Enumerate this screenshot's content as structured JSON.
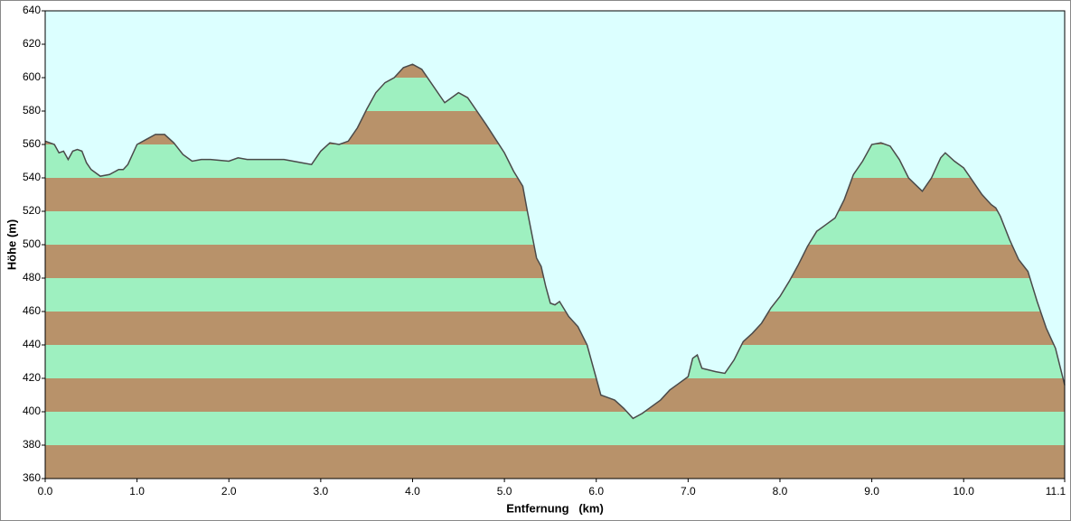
{
  "chart_data": {
    "type": "area",
    "x_label": "Entfernung   (km)",
    "y_label": "Höhe (m)",
    "x": [
      0.0,
      0.1,
      0.15,
      0.2,
      0.25,
      0.3,
      0.35,
      0.4,
      0.45,
      0.5,
      0.6,
      0.7,
      0.8,
      0.85,
      0.9,
      1.0,
      1.1,
      1.2,
      1.3,
      1.4,
      1.5,
      1.6,
      1.7,
      1.8,
      2.0,
      2.1,
      2.2,
      2.4,
      2.6,
      2.7,
      2.8,
      2.9,
      3.0,
      3.1,
      3.2,
      3.3,
      3.4,
      3.5,
      3.6,
      3.7,
      3.8,
      3.9,
      4.0,
      4.1,
      4.2,
      4.35,
      4.5,
      4.6,
      4.8,
      5.0,
      5.1,
      5.2,
      5.25,
      5.3,
      5.35,
      5.4,
      5.45,
      5.5,
      5.55,
      5.6,
      5.7,
      5.8,
      5.9,
      6.0,
      6.05,
      6.1,
      6.2,
      6.3,
      6.4,
      6.5,
      6.6,
      6.7,
      6.8,
      6.9,
      7.0,
      7.05,
      7.1,
      7.15,
      7.3,
      7.4,
      7.5,
      7.6,
      7.7,
      7.8,
      7.9,
      8.0,
      8.1,
      8.2,
      8.3,
      8.4,
      8.5,
      8.6,
      8.7,
      8.8,
      8.9,
      9.0,
      9.1,
      9.2,
      9.3,
      9.4,
      9.55,
      9.65,
      9.75,
      9.8,
      9.9,
      10.0,
      10.1,
      10.2,
      10.3,
      10.35,
      10.4,
      10.5,
      10.6,
      10.7,
      10.8,
      10.9,
      11.0,
      11.05,
      11.1
    ],
    "values": [
      562,
      560,
      555,
      556,
      551,
      556,
      557,
      556,
      549,
      545,
      541,
      542,
      545,
      545,
      548,
      560,
      563,
      566,
      566,
      561,
      554,
      550,
      551,
      551,
      550,
      552,
      551,
      551,
      551,
      550,
      549,
      548,
      556,
      561,
      560,
      562,
      570,
      581,
      591,
      597,
      600,
      606,
      608,
      605,
      597,
      585,
      591,
      588,
      572,
      555,
      544,
      535,
      520,
      506,
      492,
      487,
      475,
      465,
      464,
      466,
      457,
      451,
      440,
      420,
      410,
      409,
      407,
      402,
      396,
      399,
      403,
      407,
      413,
      417,
      421,
      432,
      434,
      426,
      424,
      423,
      431,
      442,
      447,
      453,
      462,
      469,
      478,
      488,
      499,
      508,
      512,
      516,
      527,
      542,
      550,
      560,
      561,
      559,
      551,
      540,
      532,
      540,
      552,
      555,
      550,
      546,
      538,
      530,
      524,
      522,
      517,
      503,
      491,
      484,
      466,
      450,
      438,
      427,
      416
    ],
    "xlim": [
      0,
      11.1
    ],
    "ylim": [
      360,
      640
    ],
    "xticks": [
      {
        "value": 0,
        "label": "0.0"
      },
      {
        "value": 1,
        "label": "1.0"
      },
      {
        "value": 2,
        "label": "2.0"
      },
      {
        "value": 3,
        "label": "3.0"
      },
      {
        "value": 4,
        "label": "4.0"
      },
      {
        "value": 5,
        "label": "5.0"
      },
      {
        "value": 6,
        "label": "6.0"
      },
      {
        "value": 7,
        "label": "7.0"
      },
      {
        "value": 8,
        "label": "8.0"
      },
      {
        "value": 9,
        "label": "9.0"
      },
      {
        "value": 10,
        "label": "10.0"
      },
      {
        "value": 11.1,
        "label": "11.1"
      }
    ],
    "yticks": [
      360,
      380,
      400,
      420,
      440,
      460,
      480,
      500,
      520,
      540,
      560,
      580,
      600,
      620,
      640
    ],
    "colors": {
      "bands": [
        "#b8926a",
        "#9ef0c0"
      ],
      "background": "#dcffff",
      "line": "#4a4a4a"
    }
  }
}
